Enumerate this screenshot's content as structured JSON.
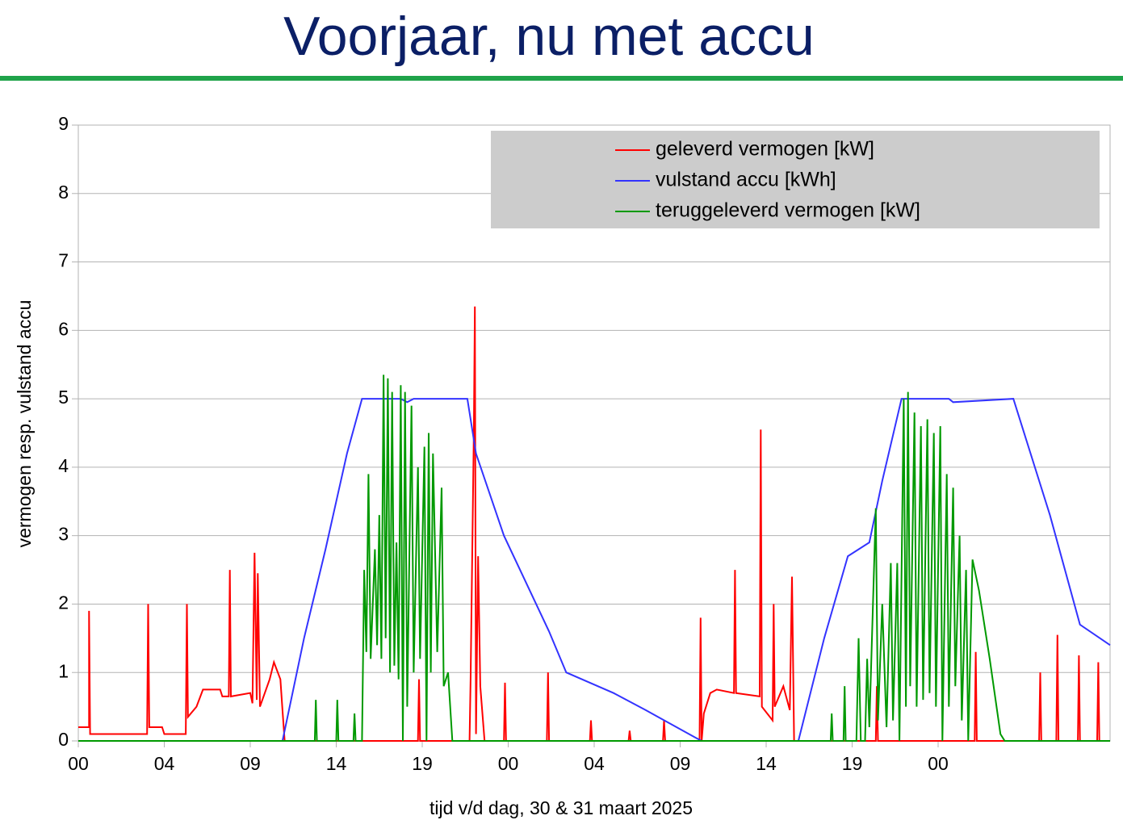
{
  "chart_data": {
    "type": "line",
    "title": "Voorjaar, nu met accu",
    "x_label": "tijd v/d dag, 30 & 31 maart 2025",
    "y_label": "vermogen resp. vulstand accu",
    "xlim": [
      0,
      48
    ],
    "ylim": [
      0,
      9
    ],
    "yticks": [
      0,
      1,
      2,
      3,
      4,
      5,
      6,
      7,
      8,
      9
    ],
    "xticks": [
      {
        "value": 0,
        "label": "00"
      },
      {
        "value": 4,
        "label": "04"
      },
      {
        "value": 8,
        "label": "09"
      },
      {
        "value": 12,
        "label": "14"
      },
      {
        "value": 16,
        "label": "19"
      },
      {
        "value": 20,
        "label": "00"
      },
      {
        "value": 24,
        "label": "04"
      },
      {
        "value": 28,
        "label": "09"
      },
      {
        "value": 32,
        "label": "14"
      },
      {
        "value": 36,
        "label": "19"
      },
      {
        "value": 40,
        "label": "00"
      }
    ],
    "grid": true,
    "legend": "top-right",
    "series": [
      {
        "name": "geleverd vermogen [kW]",
        "color": "#ff0000",
        "x": [
          0,
          0.5,
          0.5,
          0.55,
          3.2,
          3.25,
          3.3,
          3.9,
          4.0,
          5.0,
          5.05,
          5.1,
          5.5,
          5.8,
          6.6,
          6.7,
          7.0,
          7.05,
          7.1,
          8.0,
          8.1,
          8.2,
          8.3,
          8.35,
          8.45,
          8.9,
          9.1,
          9.4,
          9.5,
          9.6,
          15.8,
          15.85,
          15.9,
          18.2,
          18.25,
          18.4,
          18.45,
          18.5,
          18.6,
          18.7,
          18.9,
          19.8,
          19.85,
          19.9,
          21.8,
          21.85,
          21.9,
          23.8,
          23.85,
          23.9,
          25.6,
          25.65,
          25.7,
          27.2,
          27.25,
          27.3,
          28.9,
          28.95,
          29.0,
          29.1,
          29.4,
          29.7,
          30.5,
          30.55,
          30.6,
          31.7,
          31.75,
          31.8,
          32.3,
          32.35,
          32.4,
          32.8,
          33.1,
          33.2,
          33.3,
          37.1,
          37.15,
          37.2,
          41.7,
          41.75,
          41.8,
          44.7,
          44.75,
          44.8,
          45.5,
          45.55,
          45.6,
          46.5,
          46.55,
          46.6,
          47.4,
          47.45,
          47.5,
          48
        ],
        "values": [
          0.2,
          0.2,
          1.9,
          0.1,
          0.1,
          2.0,
          0.2,
          0.2,
          0.1,
          0.1,
          2.0,
          0.35,
          0.5,
          0.75,
          0.75,
          0.65,
          0.65,
          2.5,
          0.65,
          0.7,
          0.55,
          2.75,
          0.6,
          2.45,
          0.5,
          0.9,
          1.15,
          0.9,
          0.45,
          0,
          0,
          0.9,
          0,
          0,
          0.9,
          4.5,
          6.35,
          0.1,
          2.7,
          0.8,
          0,
          0,
          0.85,
          0,
          0,
          1.0,
          0,
          0,
          0.3,
          0,
          0,
          0.15,
          0,
          0,
          0.3,
          0,
          0,
          1.8,
          0,
          0.4,
          0.7,
          0.75,
          0.7,
          2.5,
          0.7,
          0.65,
          4.55,
          0.5,
          0.3,
          2.0,
          0.5,
          0.8,
          0.45,
          2.4,
          0,
          0,
          0.8,
          0,
          0,
          1.3,
          0,
          0,
          1.0,
          0,
          0,
          1.55,
          0,
          0,
          1.25,
          0,
          0,
          1.15,
          0,
          0
        ]
      },
      {
        "name": "vulstand accu [kWh]",
        "color": "#3333ff",
        "x": [
          0,
          9.5,
          10.5,
          11.5,
          12.5,
          13.2,
          15.0,
          15.3,
          15.6,
          18.1,
          18.5,
          19.8,
          21.9,
          22.7,
          24.9,
          26.4,
          28.7,
          29.0,
          33.5,
          34.7,
          35.8,
          36.8,
          37.4,
          38.3,
          40.5,
          40.7,
          43.5,
          45.2,
          46.6,
          48
        ],
        "values": [
          0,
          0,
          1.5,
          2.8,
          4.2,
          5,
          5,
          4.95,
          5,
          5,
          4.2,
          3.0,
          1.6,
          1.0,
          0.7,
          0.45,
          0.05,
          0,
          0,
          1.5,
          2.7,
          2.9,
          3.8,
          5,
          5,
          4.95,
          5,
          3.3,
          1.7,
          1.4
        ]
      },
      {
        "name": "teruggeleverd vermogen [kW]",
        "color": "#009900",
        "x": [
          0,
          11.0,
          11.05,
          11.1,
          12.0,
          12.05,
          12.1,
          12.8,
          12.85,
          12.9,
          13.2,
          13.3,
          13.4,
          13.5,
          13.6,
          13.8,
          13.9,
          14.0,
          14.1,
          14.2,
          14.3,
          14.4,
          14.5,
          14.6,
          14.7,
          14.8,
          14.9,
          15.0,
          15.1,
          15.2,
          15.3,
          15.5,
          15.6,
          15.8,
          15.9,
          16.1,
          16.2,
          16.3,
          16.4,
          16.5,
          16.7,
          16.9,
          17.0,
          17.2,
          17.4,
          18,
          35.0,
          35.05,
          35.1,
          35.6,
          35.65,
          35.7,
          36.2,
          36.3,
          36.4,
          36.6,
          36.7,
          36.8,
          37.1,
          37.2,
          37.4,
          37.6,
          37.8,
          37.9,
          38.1,
          38.2,
          38.4,
          38.5,
          38.6,
          38.7,
          38.9,
          39.0,
          39.2,
          39.3,
          39.5,
          39.6,
          39.8,
          39.9,
          40.1,
          40.2,
          40.4,
          40.5,
          40.7,
          40.8,
          41.0,
          41.1,
          41.3,
          41.4,
          41.6,
          41.9,
          42.4,
          42.9,
          43.1,
          48
        ],
        "values": [
          0,
          0,
          0.6,
          0,
          0,
          0.6,
          0,
          0,
          0.4,
          0,
          0,
          2.5,
          1.3,
          3.9,
          1.2,
          2.8,
          1.4,
          3.3,
          1.2,
          5.35,
          1.5,
          5.3,
          1.0,
          5.1,
          1.1,
          2.9,
          0.9,
          5.2,
          0,
          5.1,
          0.5,
          4.9,
          1.0,
          4.0,
          1.2,
          4.3,
          0,
          4.5,
          1.0,
          4.2,
          1.3,
          3.7,
          0.8,
          1.0,
          0,
          0,
          0,
          0.4,
          0,
          0,
          0.8,
          0,
          0,
          1.5,
          0,
          0,
          1.2,
          0.2,
          3.4,
          0.3,
          2.0,
          0.2,
          2.6,
          0.3,
          2.6,
          0,
          5.0,
          0.5,
          5.1,
          0.8,
          4.8,
          0.5,
          4.6,
          0.6,
          4.7,
          0.7,
          4.5,
          0.5,
          4.6,
          0,
          3.9,
          0.5,
          3.7,
          0.8,
          3.0,
          0.3,
          2.5,
          0,
          2.65,
          2.2,
          1.2,
          0.1,
          0,
          0
        ]
      }
    ]
  }
}
